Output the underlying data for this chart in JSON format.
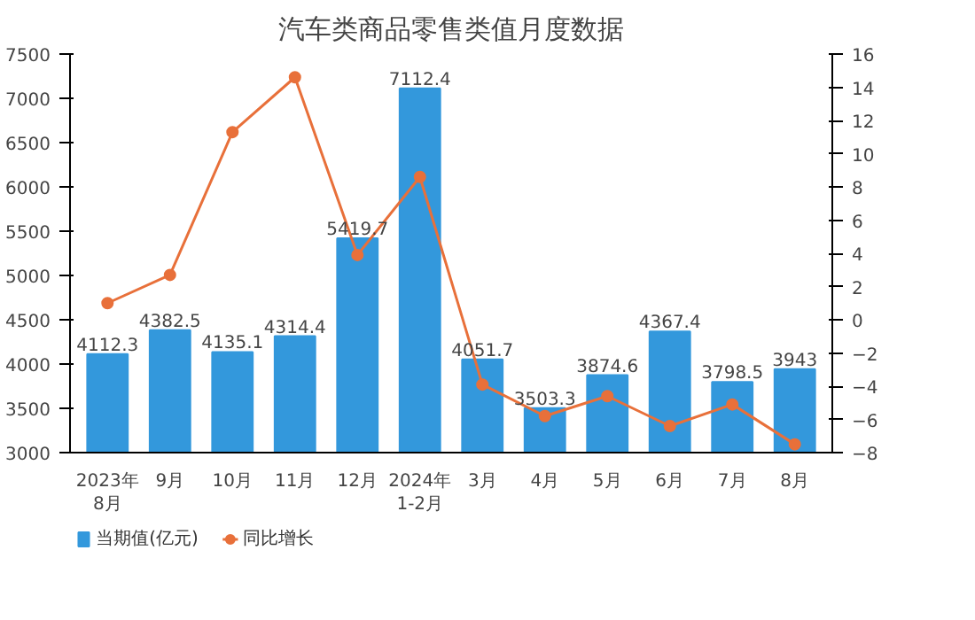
{
  "chart_data": {
    "type": "bar",
    "title": "汽车类商品零售类值月度数据",
    "categories": [
      "2023年\n8月",
      "9月",
      "10月",
      "11月",
      "12月",
      "2024年\n1-2月",
      "3月",
      "4月",
      "5月",
      "6月",
      "7月",
      "8月"
    ],
    "series": [
      {
        "name": "当期值(亿元)",
        "type": "bar",
        "color": "#3398dc",
        "values": [
          4112.3,
          4382.5,
          4135.1,
          4314.4,
          5419.7,
          7112.4,
          4051.7,
          3503.3,
          3874.6,
          4367.4,
          3798.5,
          3943
        ],
        "value_labels": [
          "4112.3",
          "4382.5",
          "4135.1",
          "4314.4",
          "5419.7",
          "7112.4",
          "4051.7",
          "3503.3",
          "3874.6",
          "4367.4",
          "3798.5",
          "3943"
        ]
      },
      {
        "name": "同比增长",
        "type": "line",
        "axis": "y2",
        "color": "#e8703a",
        "marker": "circle",
        "values": [
          1.0,
          2.7,
          11.3,
          14.6,
          3.9,
          8.6,
          -3.9,
          -5.8,
          -4.6,
          -6.4,
          -5.1,
          -7.5
        ]
      }
    ],
    "ylim": [
      3000,
      7500
    ],
    "yticks": [
      3000,
      3500,
      4000,
      4500,
      5000,
      5500,
      6000,
      6500,
      7000,
      7500
    ],
    "y2lim": [
      -8,
      16
    ],
    "y2ticks": [
      -8,
      -6,
      -4,
      -2,
      0,
      2,
      4,
      6,
      8,
      10,
      12,
      14,
      16
    ],
    "grid": false,
    "legend": "bottom left"
  }
}
